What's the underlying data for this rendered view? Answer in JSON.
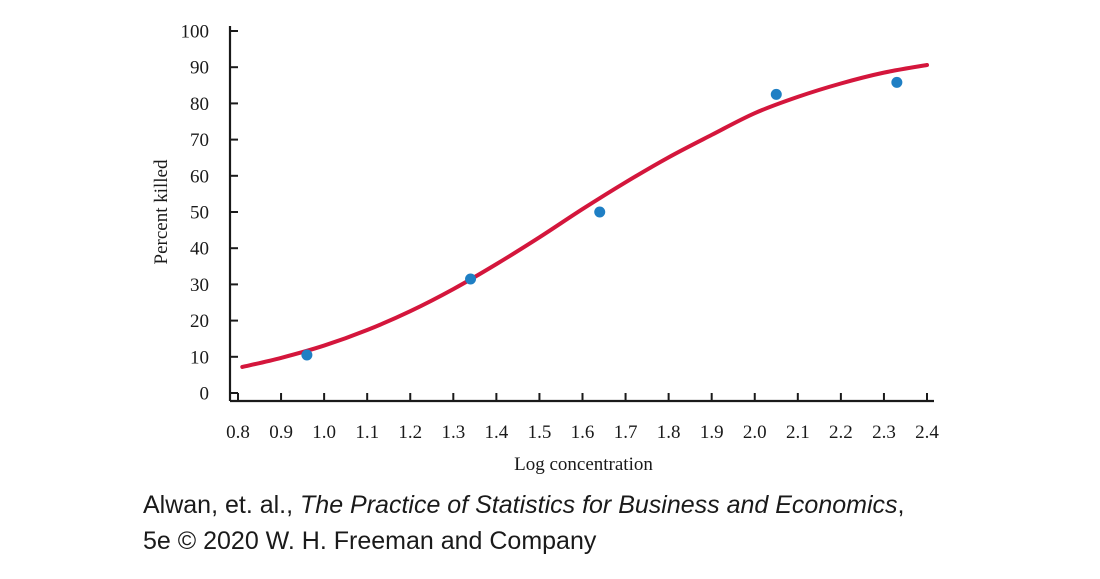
{
  "chart_data": {
    "type": "scatter",
    "xlabel": "Log concentration",
    "ylabel": "Percent killed",
    "xlim": [
      0.8,
      2.4
    ],
    "ylim": [
      0,
      100
    ],
    "x_ticks": [
      "0.8",
      "0.9",
      "1.0",
      "1.1",
      "1.2",
      "1.3",
      "1.4",
      "1.5",
      "1.6",
      "1.7",
      "1.8",
      "1.9",
      "2.0",
      "2.1",
      "2.2",
      "2.3",
      "2.4"
    ],
    "y_ticks": [
      "0",
      "10",
      "20",
      "30",
      "40",
      "50",
      "60",
      "70",
      "80",
      "90",
      "100"
    ],
    "grid": false,
    "series": [
      {
        "kind": "points",
        "color": "#1f7fc4",
        "points": [
          {
            "x": 0.96,
            "y": 10.5
          },
          {
            "x": 1.34,
            "y": 31.5
          },
          {
            "x": 1.64,
            "y": 50.0
          },
          {
            "x": 2.05,
            "y": 82.5
          },
          {
            "x": 2.33,
            "y": 85.8
          }
        ]
      },
      {
        "kind": "fitted-curve",
        "color": "#d4163c",
        "points": [
          {
            "x": 0.81,
            "y": 7.2
          },
          {
            "x": 0.9,
            "y": 9.7
          },
          {
            "x": 1.0,
            "y": 13.1
          },
          {
            "x": 1.1,
            "y": 17.4
          },
          {
            "x": 1.2,
            "y": 22.6
          },
          {
            "x": 1.3,
            "y": 28.7
          },
          {
            "x": 1.4,
            "y": 35.6
          },
          {
            "x": 1.5,
            "y": 43.0
          },
          {
            "x": 1.6,
            "y": 50.8
          },
          {
            "x": 1.7,
            "y": 58.2
          },
          {
            "x": 1.8,
            "y": 65.1
          },
          {
            "x": 1.9,
            "y": 71.3
          },
          {
            "x": 2.0,
            "y": 77.3
          },
          {
            "x": 2.1,
            "y": 81.8
          },
          {
            "x": 2.2,
            "y": 85.5
          },
          {
            "x": 2.3,
            "y": 88.5
          },
          {
            "x": 2.4,
            "y": 90.6
          }
        ]
      }
    ]
  },
  "caption": {
    "line1_prefix": "Alwan, et. al., ",
    "line1_title": "The Practice of Statistics for Business and Economics",
    "line1_suffix": ",",
    "line2": "5e © 2020 W. H. Freeman and Company"
  }
}
